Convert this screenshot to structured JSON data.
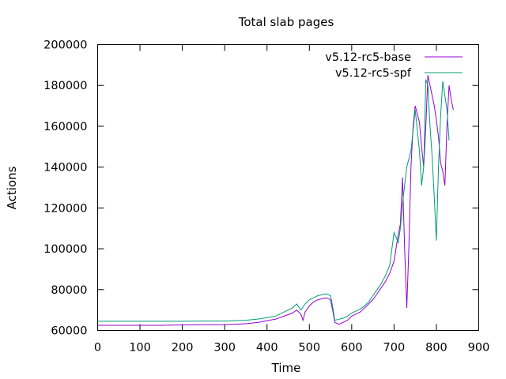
{
  "chart_data": {
    "type": "line",
    "title": "Total slab pages",
    "xlabel": "Time",
    "ylabel": "Actions",
    "xlim": [
      0,
      900
    ],
    "ylim": [
      60000,
      200000
    ],
    "xticks": [
      0,
      100,
      200,
      300,
      400,
      500,
      600,
      700,
      800,
      900
    ],
    "yticks": [
      60000,
      80000,
      100000,
      120000,
      140000,
      160000,
      180000,
      200000
    ],
    "grid": false,
    "legend_position": "top-right",
    "series": [
      {
        "name": "v5.12-rc5-base",
        "color": "#9400d3",
        "x": [
          0,
          50,
          100,
          150,
          200,
          250,
          300,
          350,
          380,
          400,
          420,
          440,
          460,
          470,
          480,
          485,
          490,
          500,
          510,
          520,
          530,
          540,
          550,
          555,
          560,
          570,
          580,
          590,
          600,
          610,
          620,
          630,
          640,
          650,
          660,
          670,
          680,
          690,
          700,
          710,
          715,
          720,
          725,
          730,
          735,
          740,
          745,
          750,
          760,
          765,
          770,
          775,
          780,
          785,
          790,
          795,
          800,
          805,
          810,
          815,
          820,
          825,
          830,
          835,
          840
        ],
        "y": [
          62500,
          62500,
          62500,
          62500,
          62700,
          62800,
          62800,
          63300,
          64000,
          64800,
          65500,
          67000,
          68500,
          70000,
          68000,
          65000,
          69000,
          72000,
          74000,
          75000,
          75500,
          76000,
          75000,
          70000,
          64000,
          63000,
          64000,
          65000,
          67000,
          68000,
          69000,
          71000,
          73000,
          75000,
          78000,
          81000,
          84000,
          88000,
          94000,
          107000,
          112000,
          135000,
          100000,
          71000,
          100000,
          140000,
          160000,
          170000,
          162000,
          150000,
          140000,
          160000,
          185000,
          180000,
          175000,
          170000,
          163000,
          155000,
          142000,
          138000,
          131000,
          160000,
          180000,
          173000,
          168000
        ]
      },
      {
        "name": "v5.12-rc5-spf",
        "color": "#009e73",
        "x": [
          0,
          50,
          100,
          150,
          200,
          250,
          300,
          350,
          380,
          400,
          420,
          440,
          460,
          470,
          480,
          490,
          500,
          510,
          520,
          530,
          540,
          550,
          555,
          560,
          570,
          580,
          590,
          600,
          610,
          620,
          630,
          640,
          650,
          660,
          670,
          680,
          690,
          700,
          710,
          715,
          720,
          730,
          740,
          745,
          750,
          760,
          765,
          770,
          775,
          780,
          785,
          790,
          795,
          800,
          805,
          810,
          815,
          820,
          825,
          830
        ],
        "y": [
          64500,
          64500,
          64500,
          64500,
          64500,
          64600,
          64600,
          65000,
          65600,
          66300,
          67000,
          69000,
          71000,
          73000,
          70000,
          73000,
          75000,
          76000,
          77000,
          77500,
          78000,
          77000,
          72000,
          65000,
          65500,
          66000,
          67000,
          68500,
          69500,
          70500,
          72000,
          74000,
          77000,
          80000,
          83000,
          87000,
          92000,
          108000,
          103000,
          110000,
          122000,
          140000,
          148000,
          158000,
          168000,
          148000,
          131000,
          140000,
          183000,
          180000,
          160000,
          145000,
          125000,
          104000,
          140000,
          165000,
          182000,
          175000,
          168000,
          153000
        ]
      }
    ]
  }
}
